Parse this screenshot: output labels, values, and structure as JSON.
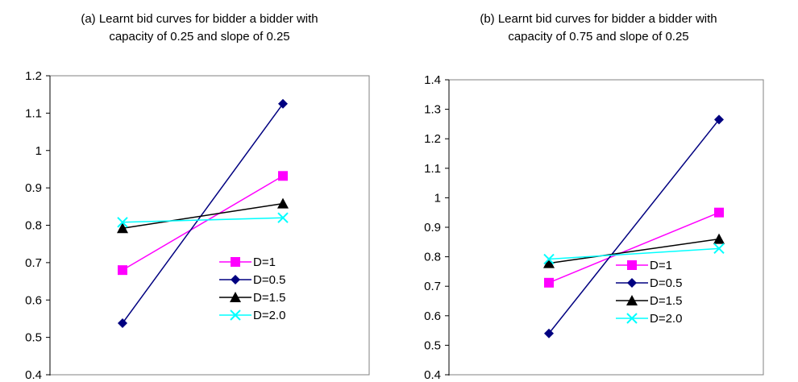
{
  "chart_data": [
    {
      "type": "line",
      "title_lines": [
        "(a) Learnt bid curves for bidder a bidder with",
        "capacity of 0.25 and slope of 0.25"
      ],
      "xlabel": "",
      "ylabel": "",
      "ylim": [
        0.4,
        1.2
      ],
      "yticks": [
        "0.4",
        "0.5",
        "0.6",
        "0.7",
        "0.8",
        "0.9",
        "1",
        "1.1",
        "1.2"
      ],
      "grid": false,
      "legend_position": "lower-right",
      "x": [
        1,
        2
      ],
      "series": [
        {
          "name": "D=1",
          "color": "#ff00ff",
          "marker": "square",
          "values": [
            0.68,
            0.932
          ]
        },
        {
          "name": "D=0.5",
          "color": "#000080",
          "marker": "diamond",
          "values": [
            0.538,
            1.125
          ]
        },
        {
          "name": "D=1.5",
          "color": "#000000",
          "marker": "triangle",
          "values": [
            0.792,
            0.858
          ]
        },
        {
          "name": "D=2.0",
          "color": "#00ffff",
          "marker": "x",
          "values": [
            0.808,
            0.82
          ]
        }
      ]
    },
    {
      "type": "line",
      "title_lines": [
        "(b) Learnt bid curves for bidder a bidder with",
        "capacity of 0.75 and slope of 0.25"
      ],
      "xlabel": "",
      "ylabel": "",
      "ylim": [
        0.4,
        1.4
      ],
      "yticks": [
        "0.4",
        "0.5",
        "0.6",
        "0.7",
        "0.8",
        "0.9",
        "1",
        "1.1",
        "1.2",
        "1.3",
        "1.4"
      ],
      "grid": false,
      "legend_position": "lower-right",
      "x": [
        1,
        2
      ],
      "series": [
        {
          "name": "D=1",
          "color": "#ff00ff",
          "marker": "square",
          "values": [
            0.712,
            0.95
          ]
        },
        {
          "name": "D=0.5",
          "color": "#000080",
          "marker": "diamond",
          "values": [
            0.54,
            1.265
          ]
        },
        {
          "name": "D=1.5",
          "color": "#000000",
          "marker": "triangle",
          "values": [
            0.778,
            0.86
          ]
        },
        {
          "name": "D=2.0",
          "color": "#00ffff",
          "marker": "x",
          "values": [
            0.792,
            0.828
          ]
        }
      ]
    }
  ]
}
